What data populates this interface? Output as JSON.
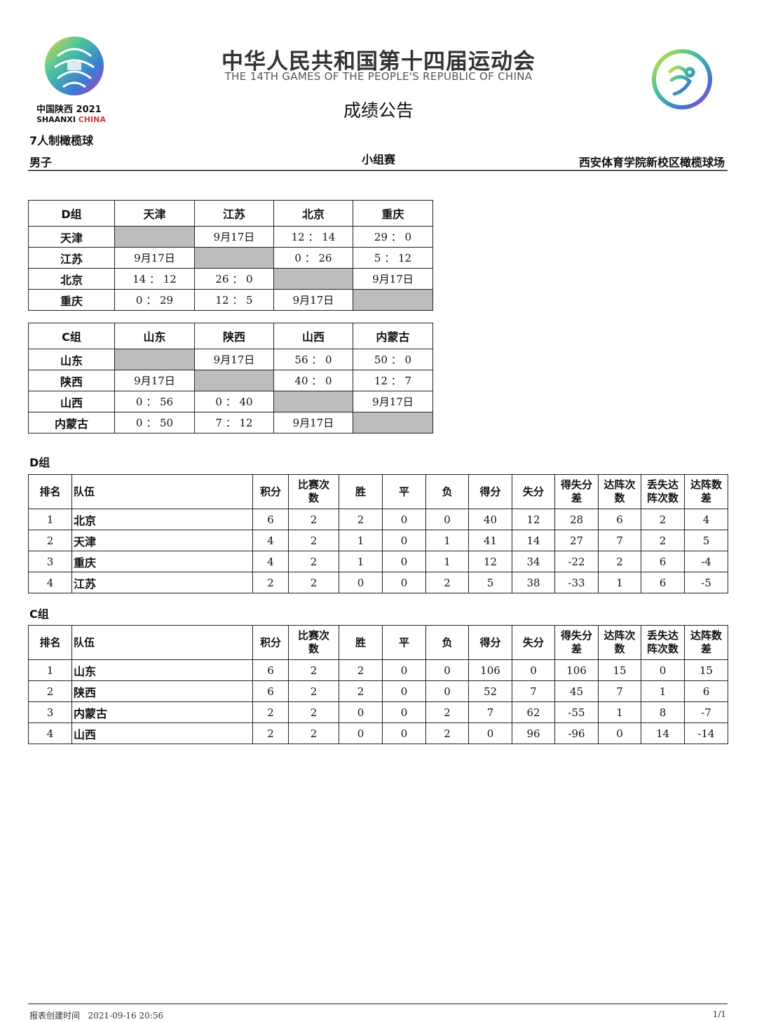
{
  "header": {
    "title_cn": "中华人民共和国第十四届运动会",
    "title_en": "THE 14TH GAMES OF THE PEOPLE'S REPUBLIC OF CHINA",
    "subtitle": "成绩公告",
    "logo_left_text": [
      "中国陕西 2021",
      "SHAANXI CHINA"
    ],
    "sport": "7人制橄榄球",
    "gender": "男子",
    "phase": "小组赛",
    "venue": "西安体育学院新校区橄榄球场"
  },
  "matrices": [
    {
      "header": [
        "D组",
        "天津",
        "江苏",
        "北京",
        "重庆"
      ],
      "rows": [
        [
          "天津",
          "",
          "9月17日",
          "12 ： 14",
          "29 ： 0"
        ],
        [
          "江苏",
          "9月17日",
          "",
          "0 ： 26",
          "5 ： 12"
        ],
        [
          "北京",
          "14 ： 12",
          "26 ： 0",
          "",
          "9月17日"
        ],
        [
          "重庆",
          "0 ： 29",
          "12 ： 5",
          "9月17日",
          ""
        ]
      ]
    },
    {
      "header": [
        "C组",
        "山东",
        "陕西",
        "山西",
        "内蒙古"
      ],
      "rows": [
        [
          "山东",
          "",
          "9月17日",
          "56 ： 0",
          "50 ： 0"
        ],
        [
          "陕西",
          "9月17日",
          "",
          "40 ： 0",
          "12 ： 7"
        ],
        [
          "山西",
          "0 ： 56",
          "0 ： 40",
          "",
          "9月17日"
        ],
        [
          "内蒙古",
          "0 ： 50",
          "7 ： 12",
          "9月17日",
          ""
        ]
      ]
    }
  ],
  "standings_header": [
    "排名",
    "队伍",
    "积分",
    "比赛次数",
    "胜",
    "平",
    "负",
    "得分",
    "失分",
    "得失分差",
    "达阵次数",
    "丢失达阵次数",
    "达阵数差"
  ],
  "standings": [
    {
      "group": "D组",
      "rows": [
        [
          "1",
          "北京",
          "6",
          "2",
          "2",
          "0",
          "0",
          "40",
          "12",
          "28",
          "6",
          "2",
          "4"
        ],
        [
          "2",
          "天津",
          "4",
          "2",
          "1",
          "0",
          "1",
          "41",
          "14",
          "27",
          "7",
          "2",
          "5"
        ],
        [
          "3",
          "重庆",
          "4",
          "2",
          "1",
          "0",
          "1",
          "12",
          "34",
          "-22",
          "2",
          "6",
          "-4"
        ],
        [
          "4",
          "江苏",
          "2",
          "2",
          "0",
          "0",
          "2",
          "5",
          "38",
          "-33",
          "1",
          "6",
          "-5"
        ]
      ]
    },
    {
      "group": "C组",
      "rows": [
        [
          "1",
          "山东",
          "6",
          "2",
          "2",
          "0",
          "0",
          "106",
          "0",
          "106",
          "15",
          "0",
          "15"
        ],
        [
          "2",
          "陕西",
          "6",
          "2",
          "2",
          "0",
          "0",
          "52",
          "7",
          "45",
          "7",
          "1",
          "6"
        ],
        [
          "3",
          "内蒙古",
          "2",
          "2",
          "0",
          "0",
          "2",
          "7",
          "62",
          "-55",
          "1",
          "8",
          "-7"
        ],
        [
          "4",
          "山西",
          "2",
          "2",
          "0",
          "0",
          "2",
          "0",
          "96",
          "-96",
          "0",
          "14",
          "-14"
        ]
      ]
    }
  ],
  "footer": {
    "created_label": "报表创建时间",
    "created_time": "2021-09-16 20:56",
    "page": "1/1"
  }
}
